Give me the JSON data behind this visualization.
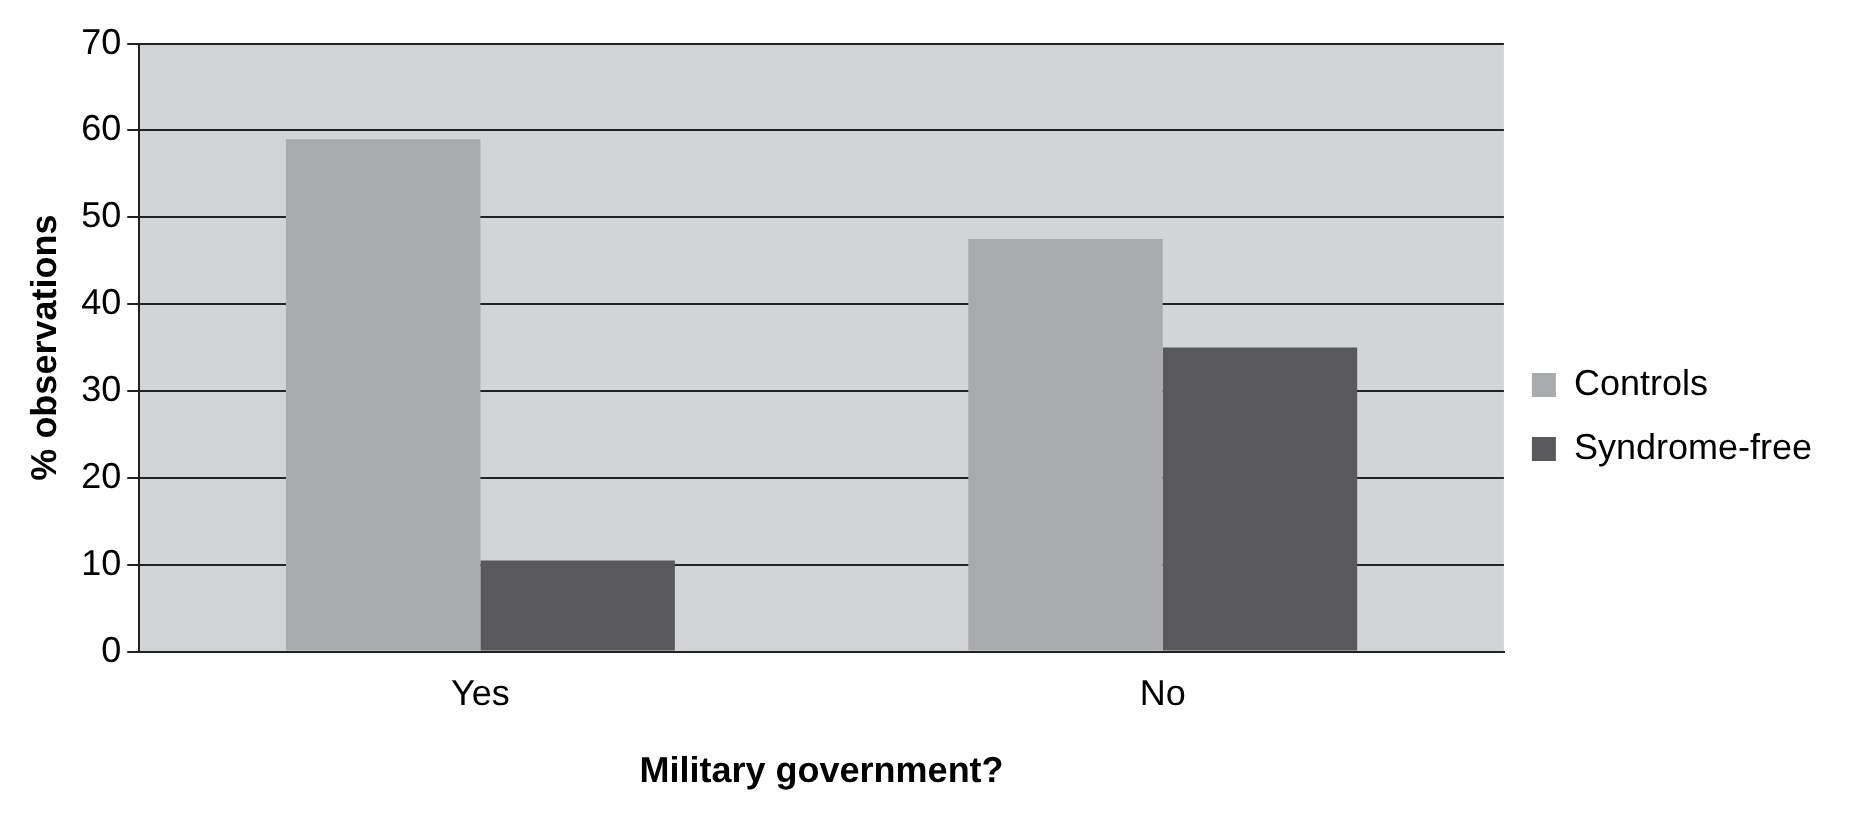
{
  "chart_data": {
    "type": "bar",
    "xlabel": "Military government?",
    "ylabel": "% observations",
    "categories": [
      "Yes",
      "No"
    ],
    "series": [
      {
        "name": "Controls",
        "color": "#a9aaad",
        "values": [
          59,
          47.5
        ]
      },
      {
        "name": "Syndrome-free",
        "color": "#59595b",
        "values": [
          10.5,
          35
        ]
      }
    ],
    "ylim": [
      0,
      70
    ],
    "yticks": [
      0,
      10,
      20,
      30,
      40,
      50,
      60,
      70
    ],
    "grid": "y",
    "legend": "right"
  }
}
